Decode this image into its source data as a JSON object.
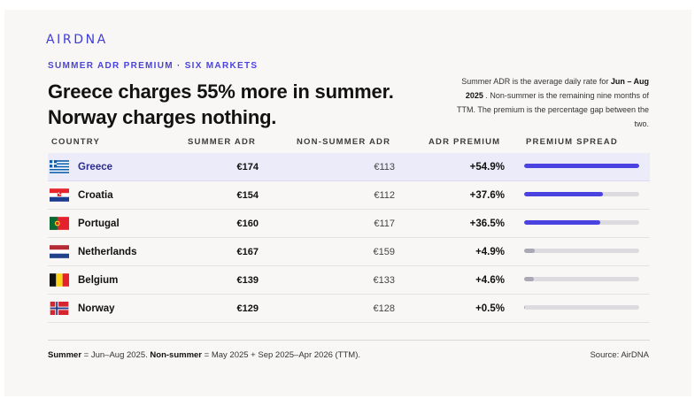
{
  "brand": {
    "logo_text": "AIRDNA",
    "accent_color": "#4a43e0"
  },
  "header": {
    "eyebrow": "SUMMER ADR PREMIUM · SIX MARKETS",
    "headline_line1": "Greece charges 55% more in summer.",
    "headline_line2": "Norway charges nothing."
  },
  "note": {
    "part1": "Summer ADR is the average daily rate for ",
    "bold": "Jun – Aug 2025",
    "part2": " . Non-summer is the remaining nine months of TTM. The premium is the percentage gap between the two."
  },
  "table": {
    "columns": {
      "country": "COUNTRY",
      "summer": "SUMMER ADR",
      "nonsummer": "NON-SUMMER ADR",
      "premium": "ADR PREMIUM",
      "spread": "PREMIUM SPREAD"
    },
    "rows": [
      {
        "country": "Greece",
        "flag": "greece-flag-icon",
        "summer": "€174",
        "nonsummer": "€113",
        "premium": "+54.9%",
        "spread_fraction": 1.0,
        "highlight": true
      },
      {
        "country": "Croatia",
        "flag": "croatia-flag-icon",
        "summer": "€154",
        "nonsummer": "€112",
        "premium": "+37.6%",
        "spread_fraction": 0.685,
        "highlight": false
      },
      {
        "country": "Portugal",
        "flag": "portugal-flag-icon",
        "summer": "€160",
        "nonsummer": "€117",
        "premium": "+36.5%",
        "spread_fraction": 0.665,
        "highlight": false
      },
      {
        "country": "Netherlands",
        "flag": "netherlands-flag-icon",
        "summer": "€167",
        "nonsummer": "€159",
        "premium": "+4.9%",
        "spread_fraction": 0.089,
        "highlight": false
      },
      {
        "country": "Belgium",
        "flag": "belgium-flag-icon",
        "summer": "€139",
        "nonsummer": "€133",
        "premium": "+4.6%",
        "spread_fraction": 0.084,
        "highlight": false
      },
      {
        "country": "Norway",
        "flag": "norway-flag-icon",
        "summer": "€129",
        "nonsummer": "€128",
        "premium": "+0.5%",
        "spread_fraction": 0.009,
        "highlight": false
      }
    ],
    "bar_colors": {
      "strong": "#4a43e0",
      "weak": "#a9a8b3",
      "track": "#dcdbe0"
    }
  },
  "footer": {
    "summer_label": "Summer",
    "summer_def": " = Jun–Aug 2025. ",
    "nonsummer_label": "Non-summer",
    "nonsummer_def": " = May 2025 + Sep 2025–Apr 2026 (TTM).",
    "source": "Source: AirDNA"
  }
}
